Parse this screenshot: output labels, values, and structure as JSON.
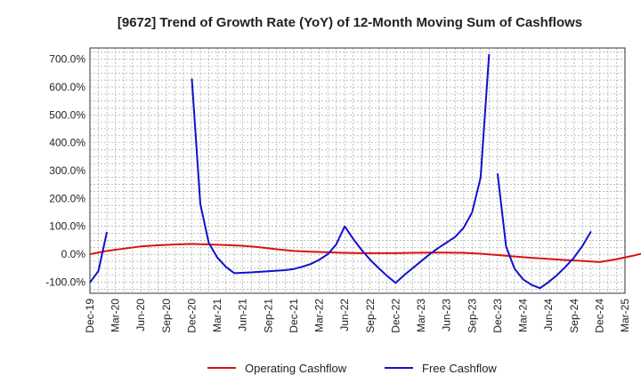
{
  "chart_data": {
    "type": "line",
    "title": "[9672]  Trend of Growth Rate (YoY) of 12-Month Moving Sum of Cashflows",
    "xlabel": "",
    "ylabel": "",
    "ylim": [
      -140,
      740
    ],
    "y_ticks": [
      -100,
      0,
      100,
      200,
      300,
      400,
      500,
      600,
      700
    ],
    "y_tick_labels": [
      "-100.0%",
      "0.0%",
      "100.0%",
      "200.0%",
      "300.0%",
      "400.0%",
      "500.0%",
      "600.0%",
      "700.0%"
    ],
    "x_tick_labels": [
      "Dec-19",
      "Mar-20",
      "Jun-20",
      "Sep-20",
      "Dec-20",
      "Mar-21",
      "Jun-21",
      "Sep-21",
      "Dec-21",
      "Mar-22",
      "Jun-22",
      "Sep-22",
      "Dec-22",
      "Mar-23",
      "Jun-23",
      "Sep-23",
      "Dec-23",
      "Mar-24",
      "Jun-24",
      "Sep-24",
      "Dec-24",
      "Mar-25"
    ],
    "grid": true,
    "legend_position": "bottom",
    "series": [
      {
        "name": "Operating Cashflow",
        "color": "#dd1111",
        "points": [
          [
            0,
            0
          ],
          [
            2,
            12
          ],
          [
            4,
            20
          ],
          [
            6,
            28
          ],
          [
            8,
            32
          ],
          [
            10,
            35
          ],
          [
            12,
            37
          ],
          [
            14,
            35
          ],
          [
            16,
            33
          ],
          [
            18,
            30
          ],
          [
            20,
            25
          ],
          [
            22,
            18
          ],
          [
            24,
            12
          ],
          [
            26,
            9
          ],
          [
            28,
            7
          ],
          [
            30,
            5
          ],
          [
            32,
            4
          ],
          [
            34,
            4
          ],
          [
            36,
            4
          ],
          [
            38,
            5
          ],
          [
            40,
            6
          ],
          [
            42,
            6
          ],
          [
            44,
            5
          ],
          [
            46,
            2
          ],
          [
            48,
            -3
          ],
          [
            50,
            -8
          ],
          [
            52,
            -13
          ],
          [
            54,
            -17
          ],
          [
            56,
            -21
          ],
          [
            58,
            -24
          ],
          [
            60,
            -28
          ],
          [
            62,
            -18
          ],
          [
            64,
            -5
          ],
          [
            66,
            10
          ],
          [
            68,
            25
          ]
        ]
      },
      {
        "name": "Free Cashflow",
        "color": "#1111cc",
        "segments": [
          [
            [
              0,
              -102
            ],
            [
              1,
              -60
            ],
            [
              2,
              80
            ]
          ],
          [
            [
              12,
              630
            ],
            [
              13,
              180
            ],
            [
              14,
              40
            ],
            [
              15,
              -12
            ],
            [
              16,
              -45
            ],
            [
              17,
              -68
            ],
            [
              19,
              -65
            ],
            [
              21,
              -61
            ],
            [
              23,
              -57
            ],
            [
              24,
              -53
            ],
            [
              25,
              -45
            ],
            [
              26,
              -35
            ],
            [
              27,
              -20
            ],
            [
              28,
              0
            ],
            [
              29,
              35
            ],
            [
              30,
              100
            ],
            [
              31,
              55
            ],
            [
              32,
              15
            ],
            [
              33,
              -20
            ],
            [
              34,
              -50
            ],
            [
              35,
              -78
            ],
            [
              36,
              -103
            ],
            [
              37,
              -75
            ],
            [
              38,
              -50
            ],
            [
              39,
              -25
            ],
            [
              40,
              0
            ],
            [
              41,
              22
            ],
            [
              42,
              42
            ],
            [
              43,
              62
            ],
            [
              44,
              95
            ],
            [
              45,
              150
            ],
            [
              46,
              275
            ],
            [
              47,
              718
            ]
          ],
          [
            [
              48,
              290
            ],
            [
              49,
              28
            ],
            [
              50,
              -52
            ],
            [
              51,
              -90
            ],
            [
              52,
              -110
            ],
            [
              53,
              -122
            ],
            [
              54,
              -100
            ],
            [
              55,
              -75
            ],
            [
              56,
              -45
            ],
            [
              57,
              -12
            ],
            [
              58,
              30
            ],
            [
              59,
              82
            ]
          ]
        ]
      }
    ]
  }
}
